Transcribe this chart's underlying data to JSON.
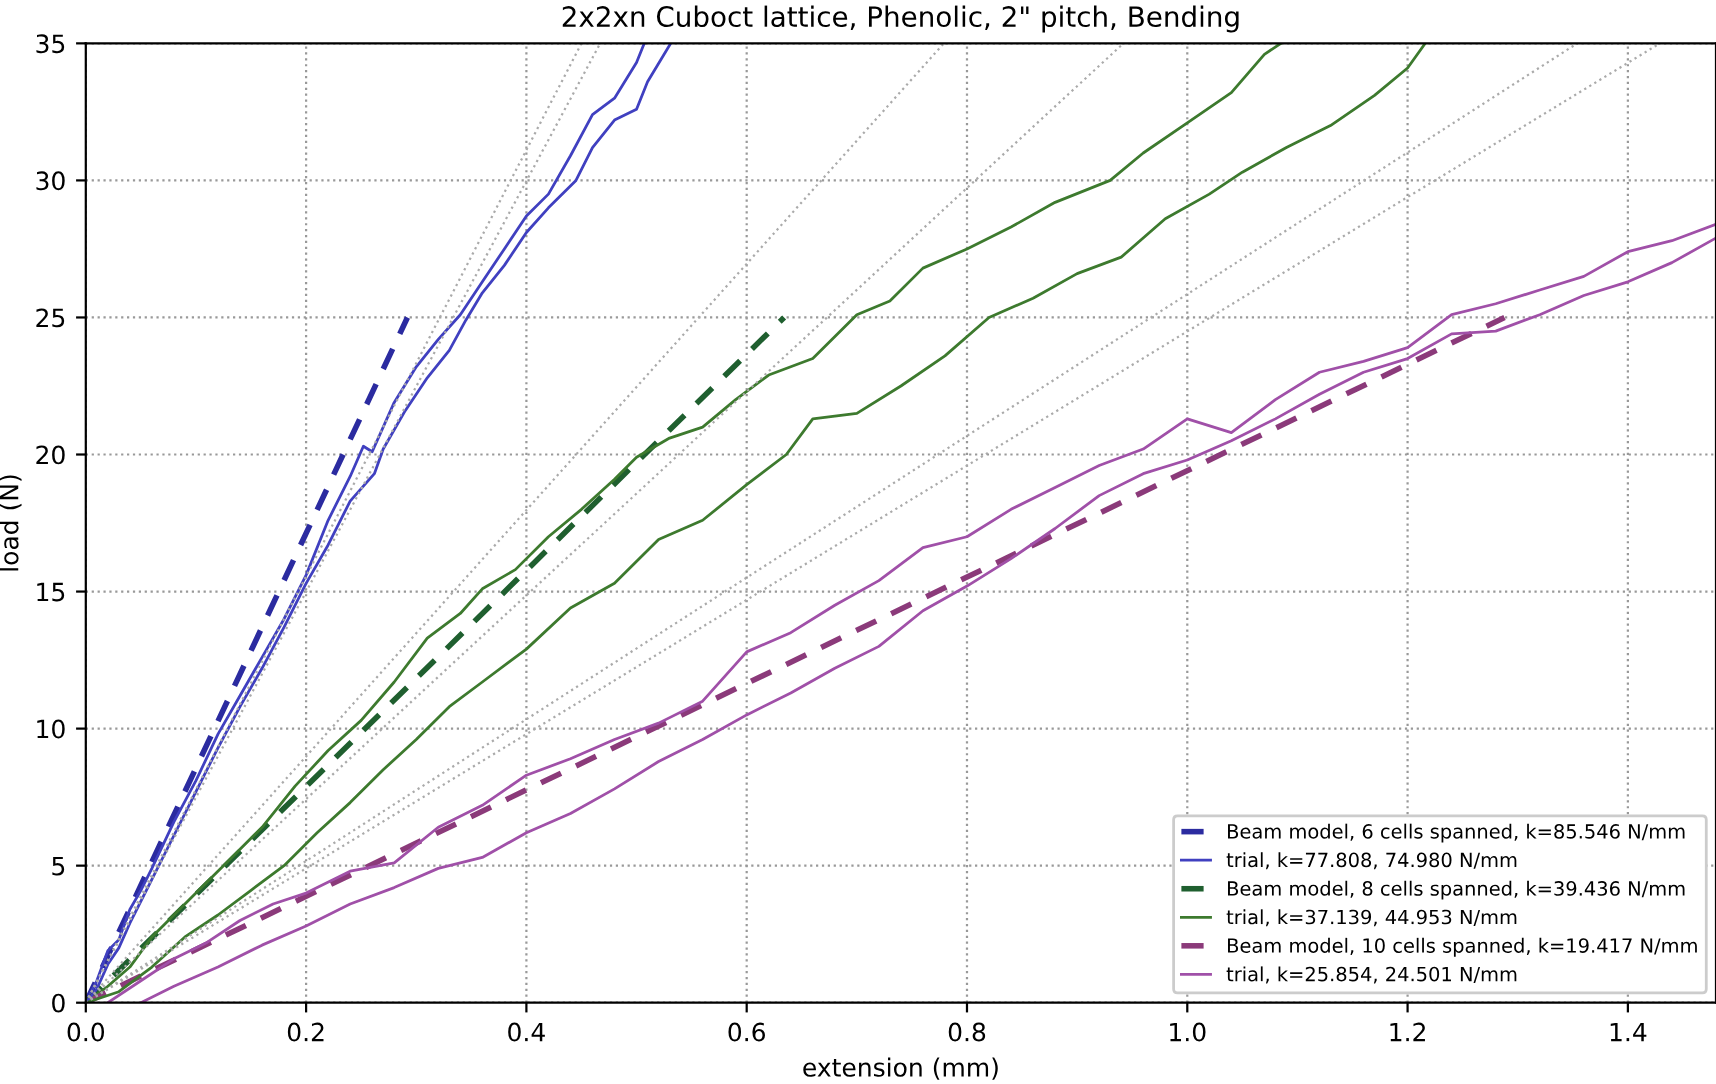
{
  "chart_data": {
    "type": "line",
    "title": "2x2xn Cuboct lattice, Phenolic, 2\" pitch, Bending",
    "xlabel": "extension (mm)",
    "ylabel": "load (N)",
    "xlim": [
      0,
      1.48
    ],
    "ylim": [
      0,
      35
    ],
    "xticks": [
      {
        "value": 0,
        "label": "0.0"
      },
      {
        "value": 0.2,
        "label": "0.2"
      },
      {
        "value": 0.4,
        "label": "0.4"
      },
      {
        "value": 0.6,
        "label": "0.6"
      },
      {
        "value": 0.8,
        "label": "0.8"
      },
      {
        "value": 1.0,
        "label": "1.0"
      },
      {
        "value": 1.2,
        "label": "1.2"
      },
      {
        "value": 1.4,
        "label": "1.4"
      }
    ],
    "yticks": [
      0,
      5,
      10,
      15,
      20,
      25,
      30,
      35
    ],
    "grid": true,
    "legend": "bottom right",
    "marker": "none",
    "series": [
      {
        "name": "Beam model, 6 cells spanned, k=85.546 N/mm",
        "color": "#2b2ba0",
        "line_style": "dashed",
        "x": [
          0,
          0.292
        ],
        "values": [
          0,
          25
        ]
      },
      {
        "name": "trial, k=77.808, 74.980 N/mm",
        "color": "#4040c0",
        "line_style": "solid",
        "x": [
          0,
          0.01,
          0.02,
          0.03,
          0.04,
          0.05,
          0.06,
          0.08,
          0.1,
          0.12,
          0.14,
          0.16,
          0.18,
          0.2,
          0.22,
          0.24,
          0.252,
          0.26,
          0.28,
          0.3,
          0.32,
          0.34,
          0.36,
          0.38,
          0.4,
          0.42,
          0.44,
          0.46,
          0.48,
          0.5,
          0.507
        ],
        "values": [
          0,
          0.8,
          1.9,
          2.3,
          3.4,
          4.1,
          4.9,
          6.6,
          8.1,
          9.8,
          11.2,
          12.6,
          14.0,
          15.6,
          17.6,
          19.2,
          20.3,
          20.1,
          21.9,
          23.2,
          24.2,
          25.1,
          26.3,
          27.5,
          28.7,
          29.5,
          30.9,
          32.4,
          33.0,
          34.3,
          35
        ]
      },
      {
        "name": "Beam model, 8 cells spanned, k=39.436 N/mm",
        "color": "#1f5f2f",
        "line_style": "dashed",
        "x": [
          0,
          0.634
        ],
        "values": [
          0,
          25
        ]
      },
      {
        "name": "trial, k=37.139, 44.953 N/mm",
        "color": "#3d7a2e",
        "line_style": "solid",
        "x": [
          0,
          0.02,
          0.04,
          0.06,
          0.08,
          0.1,
          0.13,
          0.16,
          0.19,
          0.22,
          0.25,
          0.28,
          0.31,
          0.34,
          0.36,
          0.39,
          0.42,
          0.45,
          0.48,
          0.5,
          0.53,
          0.56,
          0.59,
          0.62,
          0.66,
          0.7,
          0.73,
          0.76,
          0.8,
          0.84,
          0.88,
          0.93,
          0.96,
          1.0,
          1.04,
          1.07,
          1.085
        ],
        "values": [
          0,
          0.6,
          1.3,
          2.4,
          3.2,
          4.0,
          5.2,
          6.4,
          7.9,
          9.2,
          10.3,
          11.7,
          13.3,
          14.2,
          15.1,
          15.8,
          17.0,
          18.0,
          19.1,
          19.9,
          20.6,
          21.0,
          22.0,
          22.9,
          23.5,
          25.1,
          25.6,
          26.8,
          27.5,
          28.3,
          29.2,
          30.0,
          31.0,
          32.1,
          33.2,
          34.6,
          35
        ]
      },
      {
        "name": "Beam model, 10 cells spanned, k=19.417 N/mm",
        "color": "#8b3a7a",
        "line_style": "dashed",
        "x": [
          0,
          1.288
        ],
        "values": [
          0,
          25
        ]
      },
      {
        "name": "trial, k=25.854, 24.501 N/mm",
        "color": "#a050a8",
        "line_style": "solid",
        "x": [
          0.02,
          0.05,
          0.08,
          0.11,
          0.14,
          0.17,
          0.2,
          0.24,
          0.28,
          0.32,
          0.36,
          0.4,
          0.44,
          0.48,
          0.52,
          0.56,
          0.6,
          0.64,
          0.68,
          0.72,
          0.76,
          0.8,
          0.84,
          0.88,
          0.92,
          0.96,
          1.0,
          1.04,
          1.08,
          1.12,
          1.16,
          1.2,
          1.24,
          1.28,
          1.32,
          1.36,
          1.4,
          1.44,
          1.48
        ],
        "values": [
          0,
          0.8,
          1.6,
          2.2,
          3.0,
          3.6,
          4.0,
          4.8,
          5.1,
          6.4,
          7.2,
          8.3,
          8.9,
          9.6,
          10.2,
          11.0,
          12.8,
          13.5,
          14.5,
          15.4,
          16.6,
          17.0,
          18.0,
          18.8,
          19.6,
          20.2,
          21.3,
          20.8,
          22.0,
          23.0,
          23.4,
          23.9,
          25.1,
          25.5,
          26.0,
          26.5,
          27.4,
          27.8,
          28.4
        ]
      },
      {
        "color": "#4040c0",
        "line_style": "solid",
        "x": [
          0,
          0.01,
          0.02,
          0.03,
          0.04,
          0.06,
          0.08,
          0.1,
          0.12,
          0.14,
          0.16,
          0.18,
          0.2,
          0.22,
          0.24,
          0.262,
          0.27,
          0.29,
          0.31,
          0.33,
          0.345,
          0.36,
          0.38,
          0.4,
          0.42,
          0.445,
          0.46,
          0.48,
          0.5,
          0.51,
          0.531
        ],
        "values": [
          0,
          0.5,
          1.4,
          2.0,
          2.9,
          4.5,
          6.1,
          7.7,
          9.3,
          10.8,
          12.2,
          13.7,
          15.3,
          16.7,
          18.3,
          19.3,
          20.2,
          21.6,
          22.8,
          23.8,
          24.9,
          25.9,
          26.9,
          28.1,
          29.0,
          30.0,
          31.2,
          32.2,
          32.6,
          33.6,
          35
        ]
      },
      {
        "color": "#3d7a2e",
        "line_style": "solid",
        "x": [
          0,
          0.03,
          0.06,
          0.09,
          0.12,
          0.15,
          0.18,
          0.21,
          0.24,
          0.27,
          0.3,
          0.33,
          0.36,
          0.4,
          0.44,
          0.48,
          0.52,
          0.56,
          0.6,
          0.636,
          0.66,
          0.7,
          0.74,
          0.78,
          0.82,
          0.86,
          0.9,
          0.94,
          0.98,
          1.02,
          1.05,
          1.09,
          1.13,
          1.17,
          1.2,
          1.216
        ],
        "values": [
          0,
          0.4,
          1.3,
          2.4,
          3.2,
          4.1,
          5.0,
          6.2,
          7.3,
          8.5,
          9.6,
          10.8,
          11.7,
          12.9,
          14.4,
          15.3,
          16.9,
          17.6,
          18.9,
          20.0,
          21.3,
          21.5,
          22.5,
          23.6,
          25.0,
          25.7,
          26.6,
          27.2,
          28.6,
          29.5,
          30.3,
          31.2,
          32.0,
          33.1,
          34.1,
          35
        ]
      },
      {
        "color": "#a050a8",
        "line_style": "solid",
        "x": [
          0.05,
          0.08,
          0.12,
          0.16,
          0.2,
          0.24,
          0.28,
          0.32,
          0.36,
          0.4,
          0.44,
          0.48,
          0.52,
          0.56,
          0.6,
          0.64,
          0.68,
          0.72,
          0.76,
          0.8,
          0.84,
          0.88,
          0.92,
          0.96,
          1.0,
          1.04,
          1.08,
          1.12,
          1.16,
          1.2,
          1.24,
          1.28,
          1.32,
          1.36,
          1.4,
          1.44,
          1.48
        ],
        "values": [
          0,
          0.6,
          1.3,
          2.1,
          2.8,
          3.6,
          4.2,
          4.9,
          5.3,
          6.2,
          6.9,
          7.8,
          8.8,
          9.6,
          10.5,
          11.3,
          12.2,
          13.0,
          14.3,
          15.2,
          16.2,
          17.3,
          18.5,
          19.3,
          19.8,
          20.5,
          21.3,
          22.2,
          23.0,
          23.5,
          24.4,
          24.5,
          25.1,
          25.8,
          26.3,
          27.0,
          27.9
        ]
      },
      {
        "color": "#aaaaaa",
        "line_style": "dotted",
        "x": [
          0,
          0.45
        ],
        "values": [
          0,
          35
        ]
      },
      {
        "color": "#aaaaaa",
        "line_style": "dotted",
        "x": [
          0,
          0.467
        ],
        "values": [
          0,
          35
        ]
      },
      {
        "color": "#aaaaaa",
        "line_style": "dotted",
        "x": [
          0,
          0.942
        ],
        "values": [
          0,
          35
        ]
      },
      {
        "color": "#aaaaaa",
        "line_style": "dotted",
        "x": [
          0,
          0.779
        ],
        "values": [
          0,
          35
        ]
      },
      {
        "color": "#aaaaaa",
        "line_style": "dotted",
        "x": [
          0,
          1.354
        ],
        "values": [
          0,
          35
        ]
      },
      {
        "color": "#aaaaaa",
        "line_style": "dotted",
        "x": [
          0,
          1.429
        ],
        "values": [
          0,
          35
        ]
      }
    ]
  }
}
